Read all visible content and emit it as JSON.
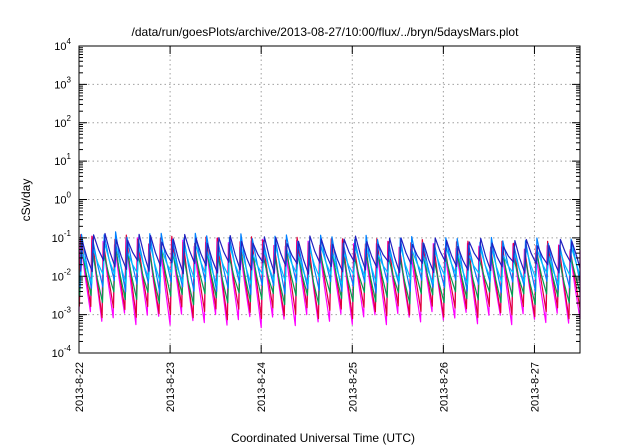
{
  "chart_data": {
    "type": "line",
    "title": "/data/run/goesPlots/archive/2013-08-27/10:00/flux/../bryn/5daysMars.plot",
    "xlabel": "Coordinated Universal Time (UTC)",
    "ylabel": "cSv/day",
    "yscale": "log",
    "ylim": [
      0.0001,
      10000
    ],
    "xlim_days": [
      0,
      5.5
    ],
    "x_ticks": [
      {
        "label": "2013-8-22",
        "day": 0
      },
      {
        "label": "2013-8-23",
        "day": 1
      },
      {
        "label": "2013-8-24",
        "day": 2
      },
      {
        "label": "2013-8-25",
        "day": 3
      },
      {
        "label": "2013-8-26",
        "day": 4
      },
      {
        "label": "2013-8-27",
        "day": 5
      }
    ],
    "y_ticks": [
      {
        "base": "10",
        "exp": "-4",
        "value": 0.0001
      },
      {
        "base": "10",
        "exp": "-3",
        "value": 0.001
      },
      {
        "base": "10",
        "exp": "-2",
        "value": 0.01
      },
      {
        "base": "10",
        "exp": "-1",
        "value": 0.1
      },
      {
        "base": "10",
        "exp": "0",
        "value": 1
      },
      {
        "base": "10",
        "exp": "1",
        "value": 10
      },
      {
        "base": "10",
        "exp": "2",
        "value": 100
      },
      {
        "base": "10",
        "exp": "3",
        "value": 1000
      },
      {
        "base": "10",
        "exp": "4",
        "value": 10000
      }
    ],
    "grid": true,
    "legend": "none",
    "series": [
      {
        "color": "#ff00ff",
        "peak_values": [
          0.09,
          0.08,
          0.075,
          0.07,
          0.06,
          0.055
        ],
        "trough_values": [
          0.0009,
          0.0008,
          0.0007,
          0.0008,
          0.0009,
          0.0008
        ]
      },
      {
        "color": "#e0003a",
        "peak_values": [
          0.1,
          0.09,
          0.085,
          0.08,
          0.07,
          0.065
        ],
        "trough_values": [
          0.0013,
          0.0012,
          0.0011,
          0.0012,
          0.0013,
          0.0012
        ]
      },
      {
        "color": "#00a050",
        "peak_values": [
          0.05,
          0.045,
          0.04,
          0.04,
          0.035,
          0.035
        ],
        "trough_values": [
          0.003,
          0.0028,
          0.0027,
          0.0028,
          0.003,
          0.0028
        ]
      },
      {
        "color": "#0080ff",
        "peak_values": [
          0.12,
          0.11,
          0.1,
          0.095,
          0.085,
          0.08
        ],
        "trough_values": [
          0.006,
          0.0055,
          0.005,
          0.0055,
          0.006,
          0.0055
        ]
      },
      {
        "color": "#00c0ff",
        "peak_values": [
          0.06,
          0.055,
          0.05,
          0.05,
          0.045,
          0.045
        ],
        "trough_values": [
          0.01,
          0.009,
          0.0085,
          0.009,
          0.0095,
          0.009
        ]
      },
      {
        "color": "#2020c0",
        "peak_values": [
          0.11,
          0.1,
          0.09,
          0.09,
          0.08,
          0.075
        ],
        "trough_values": [
          0.02,
          0.018,
          0.017,
          0.018,
          0.019,
          0.018
        ]
      }
    ],
    "cycles_per_day": 8
  }
}
